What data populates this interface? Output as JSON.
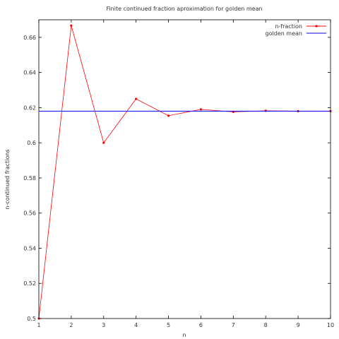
{
  "chart_data": {
    "type": "line",
    "title": "Finite continued fraction aproximation for golden mean",
    "xlabel": "n",
    "ylabel": "n-continued fractions",
    "xlim": [
      1,
      10
    ],
    "ylim": [
      0.5,
      0.67
    ],
    "x_ticks": [
      1,
      2,
      3,
      4,
      5,
      6,
      7,
      8,
      9,
      10
    ],
    "y_ticks": [
      0.5,
      0.52,
      0.54,
      0.56,
      0.58,
      0.6,
      0.62,
      0.64,
      0.66
    ],
    "legend_position": "top-right",
    "grid": false,
    "series": [
      {
        "name": "n-fraction",
        "color": "#ff0000",
        "marker": "point",
        "x": [
          1,
          2,
          3,
          4,
          5,
          6,
          7,
          8,
          9,
          10
        ],
        "values": [
          0.5,
          0.6667,
          0.6,
          0.625,
          0.6154,
          0.619,
          0.6176,
          0.6182,
          0.618,
          0.618
        ]
      },
      {
        "name": "golden mean",
        "color": "#0000ff",
        "marker": "none",
        "type": "hline",
        "value": 0.618
      }
    ]
  }
}
